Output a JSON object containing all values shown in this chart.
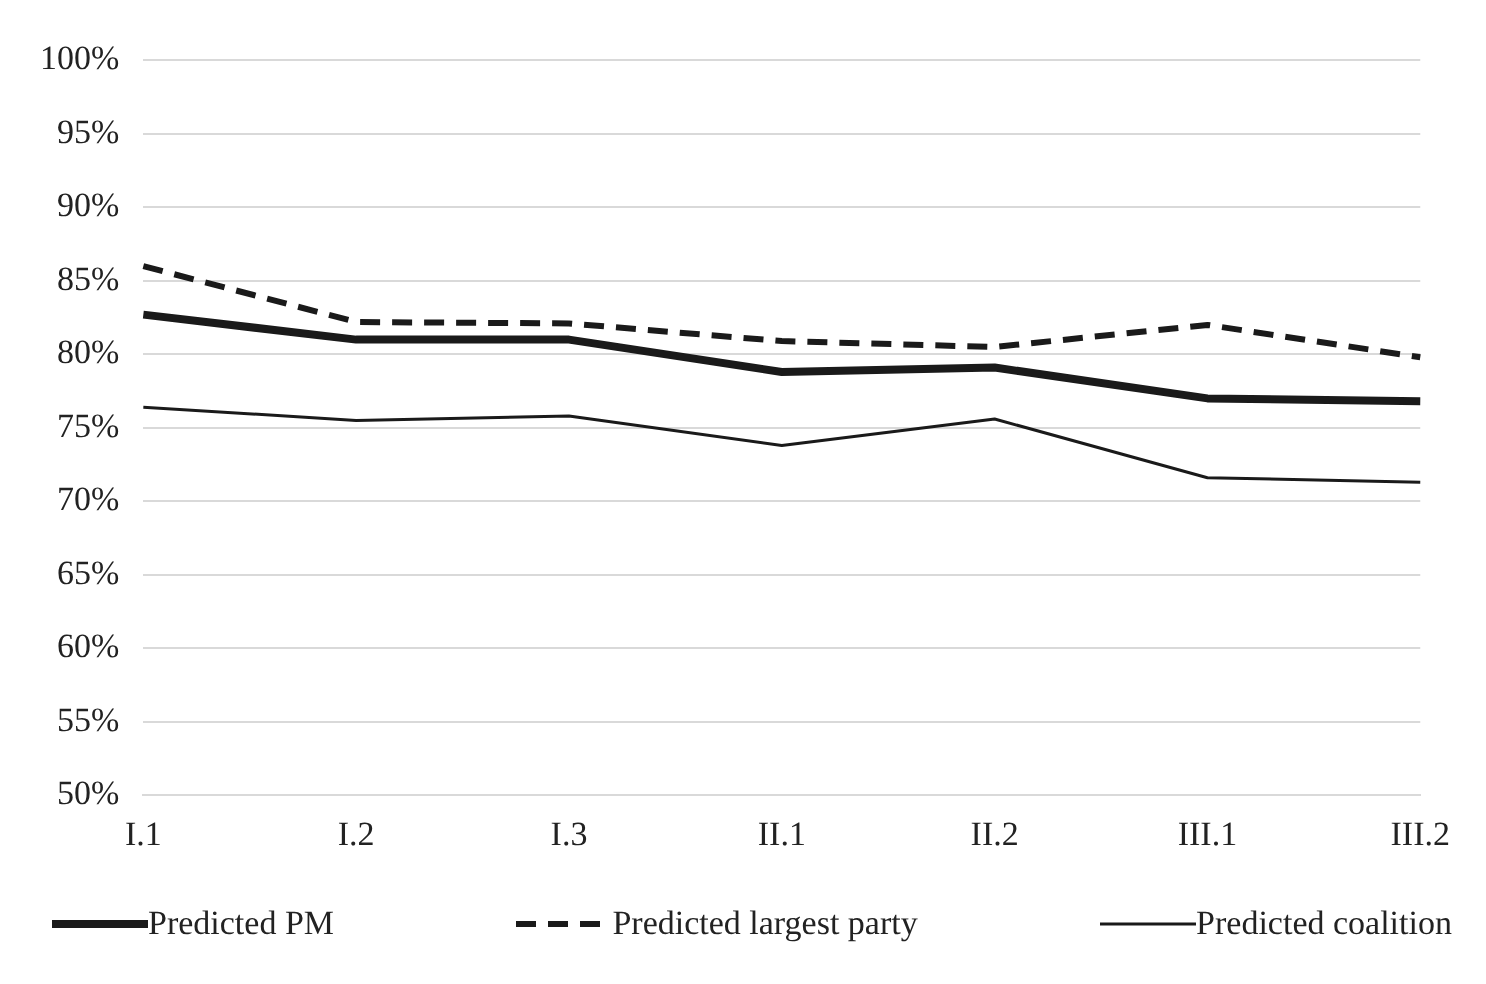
{
  "chart_data": {
    "type": "line",
    "categories": [
      "I.1",
      "I.2",
      "I.3",
      "II.1",
      "II.2",
      "III.1",
      "III.2"
    ],
    "series": [
      {
        "name": "Predicted PM",
        "color": "#1a1a1a",
        "line_style": "solid",
        "values": [
          82.7,
          81.0,
          81.0,
          78.8,
          79.1,
          77.0,
          76.8
        ]
      },
      {
        "name": "Predicted largest party",
        "color": "#1a1a1a",
        "line_style": "dashed",
        "values": [
          86.0,
          82.2,
          82.1,
          80.9,
          80.5,
          82.0,
          79.8
        ]
      },
      {
        "name": "Predicted coalition",
        "color": "#1a1a1a",
        "line_style": "solid",
        "values": [
          76.4,
          75.5,
          75.8,
          73.8,
          75.6,
          71.6,
          71.3
        ]
      }
    ],
    "ylim": [
      50,
      100
    ],
    "yticks": [
      {
        "value": 50,
        "label": "50%"
      },
      {
        "value": 55,
        "label": "55%"
      },
      {
        "value": 60,
        "label": "60%"
      },
      {
        "value": 65,
        "label": "65%"
      },
      {
        "value": 70,
        "label": "70%"
      },
      {
        "value": 75,
        "label": "75%"
      },
      {
        "value": 80,
        "label": "80%"
      },
      {
        "value": 85,
        "label": "85%"
      },
      {
        "value": 90,
        "label": "90%"
      },
      {
        "value": 95,
        "label": "95%"
      },
      {
        "value": 100,
        "label": "100%"
      }
    ],
    "grid": "y",
    "legend": "bottom",
    "marker": "none"
  }
}
